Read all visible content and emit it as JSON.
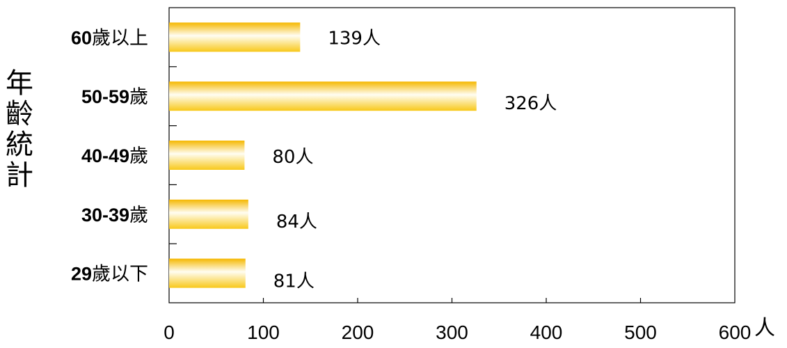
{
  "chart_data": {
    "type": "bar",
    "orientation": "horizontal",
    "categories": [
      "60歲以上",
      "50-59歲",
      "40-49歲",
      "30-39歲",
      "29歲以下"
    ],
    "values": [
      139,
      326,
      80,
      84,
      81
    ],
    "data_labels": [
      "139人",
      "326人",
      "80人",
      "84人",
      "81人"
    ],
    "title": "",
    "xlabel": "人",
    "ylabel": "年齡統計",
    "xlim": [
      0,
      600
    ],
    "x_ticks": [
      0,
      100,
      200,
      300,
      400,
      500,
      600
    ],
    "grid": false,
    "legend": "none",
    "bar_color_top": "#f5b800",
    "bar_color_mid": "#fffdf2",
    "bar_color_bottom": "#f8c81a"
  }
}
